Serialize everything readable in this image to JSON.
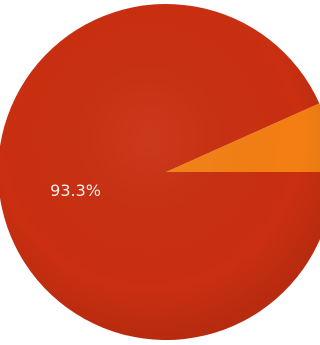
{
  "chart_data": {
    "type": "pie",
    "title": "",
    "slices": [
      {
        "label": "",
        "value": 93.3,
        "display": "93.3%",
        "color": "#c92f10"
      },
      {
        "label": "",
        "value": 6.7,
        "display": "",
        "color": "#f37f14"
      }
    ],
    "start_angle_deg": 0,
    "direction": "clockwise",
    "legend": "none"
  }
}
